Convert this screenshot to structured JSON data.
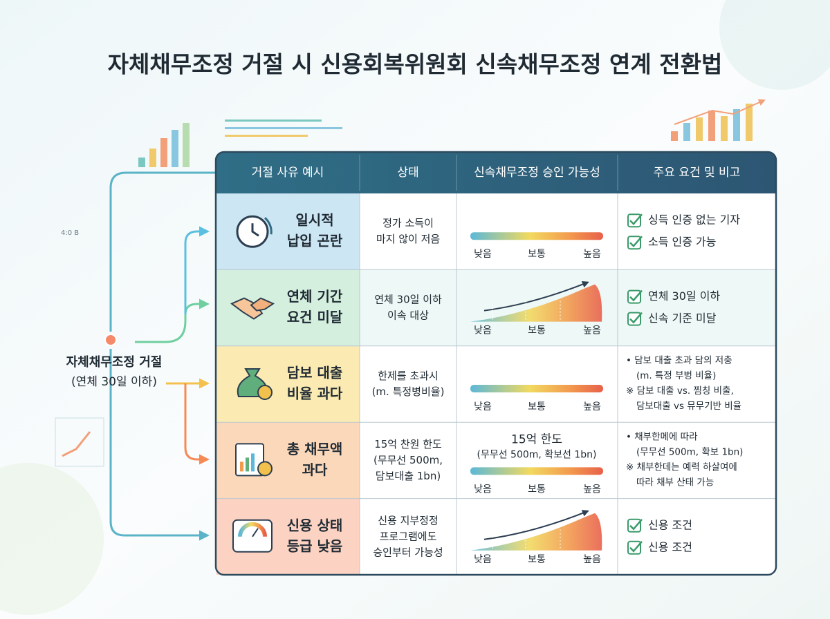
{
  "title": "자체채무조정 거절 시 신용회복위원회 신속채무조정 연계 전환법",
  "decor_label": "4:0 B",
  "source": {
    "label": "자체채무조정 거절",
    "sublabel": "(연체 30일 이하)"
  },
  "table": {
    "headers": [
      "거절 사유 예시",
      "상태",
      "신속채무조정 승인 가능성",
      "주요 요건 및 비고"
    ],
    "rows": [
      {
        "reason": [
          "일시적",
          "납입 곤란"
        ],
        "status": [
          "정가 소득이",
          "마지 않이 저음"
        ],
        "gauge": {
          "labels": [
            "낮음",
            "보통",
            "높음"
          ]
        },
        "checks": [
          "싱득 인증 없는 기자",
          "소득 인증 가능"
        ]
      },
      {
        "reason": [
          "연체 기간",
          "요건 미달"
        ],
        "status": [
          "연체 30일 이하",
          "이속 대상"
        ],
        "gauge": {
          "labels": [
            "낮음",
            "보통",
            "높음"
          ]
        },
        "checks": [
          "연체 30일 이하",
          "신속 기준 미달"
        ]
      },
      {
        "reason": [
          "담보 대출",
          "비율 과다"
        ],
        "status": [
          "한제를 초과시",
          "(m. 특정병비율)"
        ],
        "gauge": {
          "labels": [
            "낮음",
            "보통",
            "높음"
          ]
        },
        "notes": [
          [
            "• 담보 대출 초과 담의 저충",
            "(m. 특정 부벙 비율)"
          ],
          [
            "※ 담보 대출 vs. 찜칭 비출,",
            "담보대출 vs 뮤무기반 비율"
          ]
        ]
      },
      {
        "reason": [
          "총 채무액",
          "과다"
        ],
        "status": [
          "15억 찬원 한도",
          "(무무선 500m,",
          "담보대출 1bn)"
        ],
        "gauge": {
          "note": [
            "15억 한도",
            "(무무선 500m, 확보선 1bn)"
          ],
          "labels": [
            "낮음",
            "보통",
            "높음"
          ]
        },
        "notes": [
          [
            "• 채부한메에 따라",
            "(무무선 500m, 확보 1bn)"
          ],
          [
            "※ 채부한데는 예력 하살여에",
            "따라 채부 산태 가능"
          ]
        ]
      },
      {
        "reason": [
          "신용 상태",
          "등급 낮음"
        ],
        "status": [
          "신용 지부정정",
          "프로그램에도",
          "승인부터 가능성"
        ],
        "gauge": {
          "labels": [
            "낮음",
            "보통",
            "높음"
          ]
        },
        "checks": [
          "신용 조건",
          "신용 조건"
        ]
      }
    ]
  }
}
